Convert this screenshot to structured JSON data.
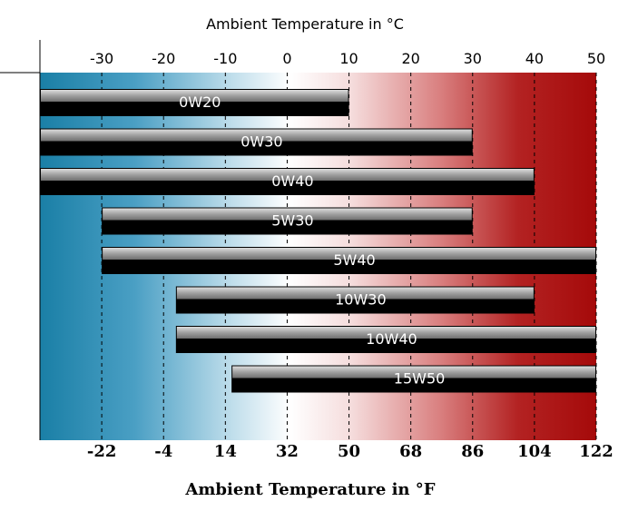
{
  "chart_data": {
    "type": "bar",
    "orientation": "horizontal-range",
    "title": "Ambient Temperature in °C",
    "xlabel": "Ambient Temperature in °F",
    "top_axis": {
      "label": "Ambient Temperature in °C",
      "ticks": [
        -30,
        -20,
        -10,
        0,
        10,
        20,
        30,
        40,
        50
      ],
      "range": [
        -40,
        50
      ]
    },
    "bottom_axis": {
      "label": "Ambient Temperature in °F",
      "ticks": [
        -22,
        -4,
        14,
        32,
        50,
        68,
        86,
        104,
        122
      ]
    },
    "grid": "dashed vertical",
    "background": "gradient blue-white-red",
    "series": [
      {
        "name": "0W20",
        "min": -40,
        "max": 10
      },
      {
        "name": "0W30",
        "min": -40,
        "max": 30
      },
      {
        "name": "0W40",
        "min": -40,
        "max": 40
      },
      {
        "name": "5W30",
        "min": -30,
        "max": 30
      },
      {
        "name": "5W40",
        "min": -30,
        "max": 50
      },
      {
        "name": "10W30",
        "min": -18,
        "max": 40
      },
      {
        "name": "10W40",
        "min": -18,
        "max": 50
      },
      {
        "name": "15W50",
        "min": -9,
        "max": 50
      }
    ]
  },
  "colors": {
    "cold": "#1a7fa6",
    "neutral": "#ffffff",
    "hot": "#a50a0a",
    "bar_dark": "#000000",
    "bar_light": "#9e9e9e"
  }
}
